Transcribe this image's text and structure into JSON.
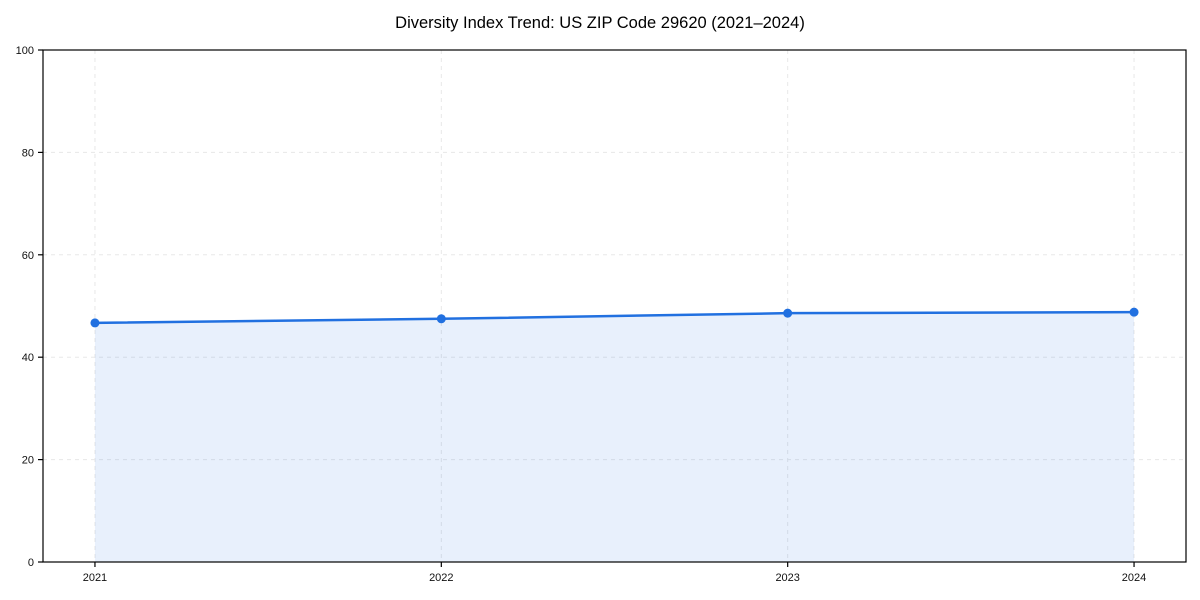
{
  "title": "Diversity Index Trend: US ZIP Code 29620 (2021–2024)",
  "chart_data": {
    "type": "area",
    "title": "Diversity Index Trend: US ZIP Code 29620 (2021–2024)",
    "x": [
      2021,
      2022,
      2023,
      2024
    ],
    "x_tick_labels": [
      "2021",
      "2022",
      "2023",
      "2024"
    ],
    "series": [
      {
        "name": "Diversity Index",
        "values": [
          46.7,
          47.5,
          48.6,
          48.8
        ]
      }
    ],
    "xlabel": "",
    "ylabel": "",
    "ylim": [
      0,
      100
    ],
    "yticks": [
      0,
      20,
      40,
      60,
      80,
      100
    ],
    "grid": true,
    "grid_style": "dashed",
    "legend": "none",
    "marker": "circle",
    "colors": {
      "line": "#2170e0",
      "marker": "#2170e0",
      "fill": "rgba(33, 112, 224, 0.10)",
      "grid": "#e8e8e8",
      "axis": "#000000",
      "tick_label": "#111111",
      "background": "#ffffff"
    }
  }
}
